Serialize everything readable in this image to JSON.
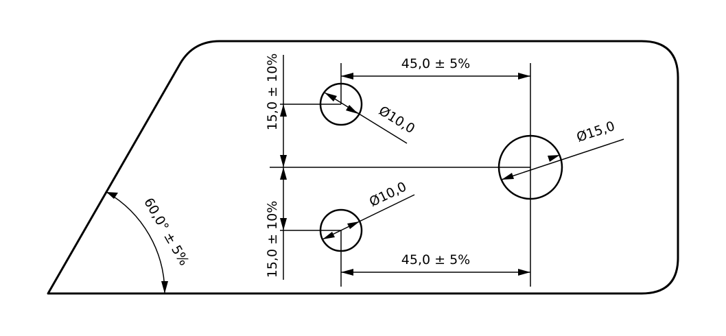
{
  "dimensions": {
    "top_horizontal": "45,0 ± 5%",
    "bottom_horizontal": "45,0 ± 5%",
    "top_vertical": "15,0 ± 10%",
    "bottom_vertical": "15,0 ± 10%",
    "top_hole_diameter": "Ø10,0",
    "bottom_hole_diameter": "Ø10,0",
    "large_hole_diameter": "Ø15,0",
    "chamfer_angle": "60,0° ± 5%"
  }
}
